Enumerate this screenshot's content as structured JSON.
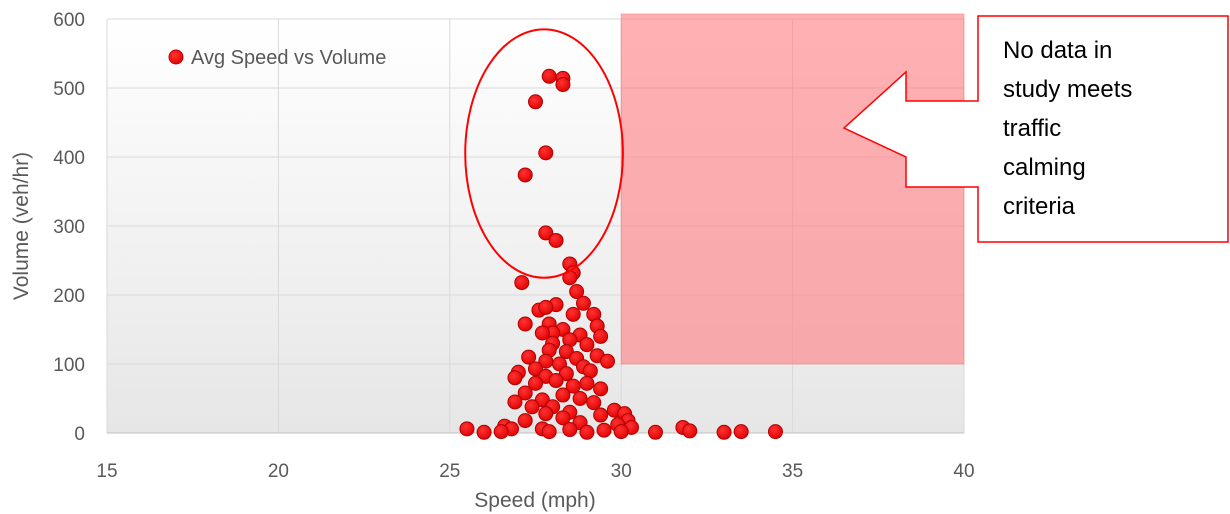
{
  "chart_data": {
    "type": "scatter",
    "xlabel": "Speed (mph)",
    "ylabel": "Volume (veh/hr)",
    "xlim": [
      15,
      40
    ],
    "ylim": [
      0,
      600
    ],
    "x_ticks": [
      15,
      20,
      25,
      30,
      35,
      40
    ],
    "y_ticks": [
      0,
      100,
      200,
      300,
      400,
      500,
      600
    ],
    "grid": true,
    "legend": {
      "placement": "top-left",
      "entries": [
        "Avg Speed vs Volume"
      ]
    },
    "series": [
      {
        "name": "Avg Speed vs Volume",
        "color": "#ff0000",
        "points": [
          [
            27.9,
            517
          ],
          [
            28.3,
            514
          ],
          [
            28.3,
            505
          ],
          [
            27.5,
            480
          ],
          [
            27.8,
            406
          ],
          [
            27.2,
            374
          ],
          [
            27.8,
            290
          ],
          [
            28.1,
            279
          ],
          [
            28.5,
            245
          ],
          [
            28.6,
            232
          ],
          [
            28.5,
            225
          ],
          [
            27.1,
            218
          ],
          [
            28.7,
            205
          ],
          [
            28.9,
            188
          ],
          [
            28.1,
            186
          ],
          [
            27.6,
            178
          ],
          [
            27.8,
            182
          ],
          [
            29.2,
            172
          ],
          [
            28.6,
            172
          ],
          [
            27.9,
            158
          ],
          [
            27.2,
            158
          ],
          [
            28.3,
            150
          ],
          [
            29.3,
            155
          ],
          [
            28.0,
            145
          ],
          [
            27.7,
            145
          ],
          [
            28.8,
            142
          ],
          [
            29.4,
            140
          ],
          [
            28.5,
            135
          ],
          [
            28.0,
            130
          ],
          [
            29.0,
            128
          ],
          [
            27.9,
            120
          ],
          [
            28.4,
            118
          ],
          [
            29.3,
            112
          ],
          [
            27.3,
            110
          ],
          [
            28.7,
            108
          ],
          [
            29.6,
            104
          ],
          [
            27.8,
            104
          ],
          [
            28.2,
            100
          ],
          [
            28.9,
            96
          ],
          [
            27.5,
            93
          ],
          [
            29.1,
            90
          ],
          [
            27.0,
            88
          ],
          [
            28.4,
            86
          ],
          [
            27.8,
            82
          ],
          [
            26.9,
            80
          ],
          [
            28.1,
            76
          ],
          [
            29.0,
            72
          ],
          [
            27.5,
            72
          ],
          [
            28.6,
            68
          ],
          [
            29.4,
            64
          ],
          [
            27.2,
            58
          ],
          [
            28.3,
            55
          ],
          [
            28.8,
            50
          ],
          [
            27.7,
            48
          ],
          [
            26.9,
            45
          ],
          [
            29.2,
            44
          ],
          [
            28.0,
            38
          ],
          [
            27.4,
            38
          ],
          [
            29.8,
            33
          ],
          [
            28.5,
            30
          ],
          [
            27.8,
            28
          ],
          [
            30.1,
            28
          ],
          [
            29.4,
            26
          ],
          [
            28.3,
            22
          ],
          [
            30.2,
            18
          ],
          [
            27.2,
            18
          ],
          [
            28.8,
            15
          ],
          [
            29.9,
            12
          ],
          [
            26.6,
            10
          ],
          [
            30.3,
            8
          ],
          [
            25.5,
            6
          ],
          [
            26.8,
            6
          ],
          [
            27.7,
            6
          ],
          [
            28.5,
            5
          ],
          [
            29.5,
            4
          ],
          [
            30.0,
            2
          ],
          [
            26.5,
            2
          ],
          [
            26.0,
            1
          ],
          [
            27.9,
            2
          ],
          [
            29.0,
            1
          ],
          [
            31.0,
            1
          ],
          [
            31.8,
            8
          ],
          [
            32.0,
            3
          ],
          [
            33.0,
            1
          ],
          [
            33.5,
            2
          ],
          [
            34.5,
            2
          ]
        ]
      }
    ],
    "annotations": {
      "shaded_region": {
        "x": [
          30,
          40
        ],
        "y": [
          100,
          600
        ],
        "color": "#ff7c80",
        "opacity": 0.6
      },
      "outlier_ellipse": {
        "cx": 27.75,
        "cy": 405,
        "rx": 2.3,
        "ry": 180,
        "color": "#ff0000"
      },
      "callout_lines": [
        "No data in",
        "study meets",
        "traffic",
        "calming",
        "criteria"
      ]
    }
  }
}
